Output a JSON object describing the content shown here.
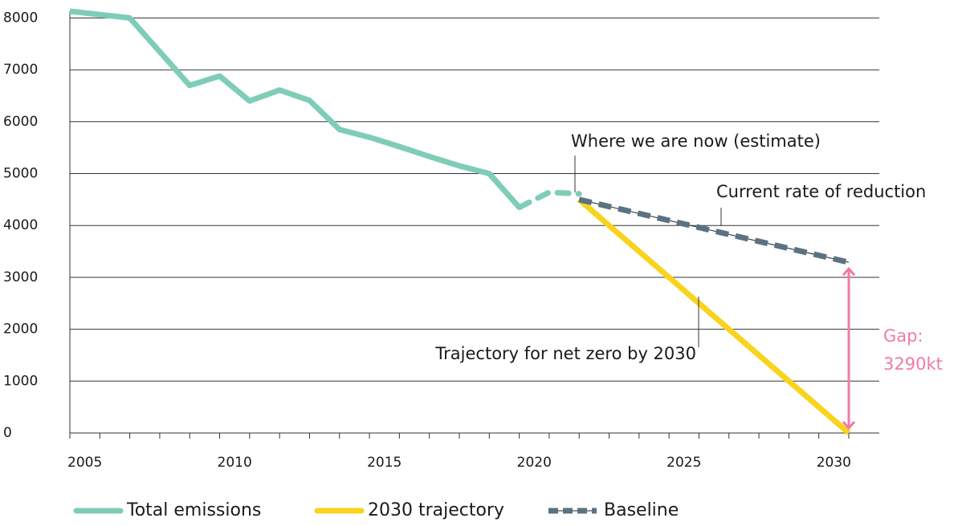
{
  "chart_data": {
    "type": "line",
    "xlim": [
      2004.5,
      2030.5
    ],
    "xticks": [
      2005,
      2010,
      2015,
      2020,
      2025,
      2030
    ],
    "ylim": [
      0,
      8130
    ],
    "yticks": [
      0,
      1000,
      2000,
      3000,
      4000,
      5000,
      6000,
      7000,
      8000
    ],
    "grid": true,
    "legend": "bottom",
    "series": [
      {
        "name": "Total emissions",
        "color": "#7fcdb8",
        "dashed_from_x": 2019.5,
        "x": [
          2004.5,
          2006.5,
          2008.5,
          2009.5,
          2010.5,
          2011.5,
          2012.5,
          2013.5,
          2014.5,
          2015.5,
          2016.5,
          2017.5,
          2018.5,
          2019.5,
          2020.5,
          2021.5
        ],
        "values": [
          8130,
          8000,
          6700,
          6880,
          6400,
          6610,
          6410,
          5850,
          5700,
          5520,
          5330,
          5150,
          5000,
          4350,
          4640,
          4610
        ]
      },
      {
        "name": "2030 trajectory",
        "color": "#f9d31c",
        "x": [
          2021.5,
          2030.5
        ],
        "values": [
          4500,
          0
        ]
      },
      {
        "name": "Baseline",
        "color": "#5b7282",
        "style": "dashed",
        "x": [
          2021.5,
          2030.5
        ],
        "values": [
          4500,
          3290
        ]
      }
    ],
    "annotations": [
      {
        "text": "Where we are now (estimate)"
      },
      {
        "text": "Current rate of reduction"
      },
      {
        "text": "Trajectory for net zero by 2030"
      },
      {
        "lines": [
          "Gap:",
          "3290kt"
        ],
        "color": "#f07aa8"
      }
    ]
  }
}
